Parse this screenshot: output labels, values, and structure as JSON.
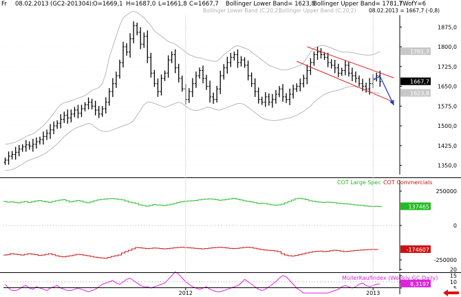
{
  "header": {
    "prefix": "Fr",
    "date": "08.02.2013",
    "symbol": "(GC2-201304):",
    "open": "O=1669,1",
    "high": "H=1687,0",
    "low": "L=1661,8",
    "close": "C=1667,7",
    "bb_lower": "Bollinger Lower Band= 1623,8",
    "bb_upper": "Bollinger Upper Band= 1781,7",
    "twof": "TWofY=6"
  },
  "colors": {
    "price": "#000000",
    "bollinger": "#b8b8b8",
    "channel": "#e02020",
    "arrow": "#1a3fd8",
    "cot_large": "#22bb22",
    "cot_commercials": "#cc1111",
    "mueller": "#dd22dd",
    "axis": "#000000",
    "grid": "#bbbbbb"
  },
  "chart_data": [
    {
      "type": "ohlc",
      "subtitle_left": "Bollinger Lower Band (C,20,2)",
      "subtitle_right": "Bollinger Upper Band (C,20,2)",
      "last_readout": "08.02.2013 = 1667,7 (-0,8)",
      "y_ticks": [
        "1875,0",
        "1800,0",
        "1725,0",
        "1650,0",
        "1575,0",
        "1500,0",
        "1425,0",
        "1350,0"
      ],
      "y_tick_values": [
        1875,
        1800,
        1725,
        1650,
        1575,
        1500,
        1425,
        1350
      ],
      "ylim": [
        1315,
        1920
      ],
      "badges": [
        {
          "text": "1781,7",
          "value": 1781.7,
          "fill": "#c8c8c8",
          "color": "#ffffff"
        },
        {
          "text": "1667,7",
          "value": 1667.7,
          "fill": "#000000",
          "color": "#ffffff"
        },
        {
          "text": "1623,8",
          "value": 1623.8,
          "fill": "#c8c8c8",
          "color": "#ffffff"
        }
      ],
      "x_labels": [
        "2012",
        "2013"
      ],
      "x_label_weeks": [
        52,
        106
      ],
      "weeks": 114,
      "close": [
        1370,
        1385,
        1392,
        1400,
        1412,
        1420,
        1428,
        1423,
        1430,
        1440,
        1448,
        1460,
        1472,
        1485,
        1500,
        1510,
        1525,
        1540,
        1530,
        1545,
        1560,
        1548,
        1565,
        1580,
        1590,
        1575,
        1560,
        1545,
        1565,
        1590,
        1630,
        1660,
        1690,
        1740,
        1800,
        1780,
        1830,
        1880,
        1855,
        1810,
        1840,
        1760,
        1700,
        1660,
        1630,
        1680,
        1700,
        1750,
        1770,
        1720,
        1680,
        1640,
        1600,
        1630,
        1660,
        1690,
        1710,
        1680,
        1650,
        1610,
        1600,
        1640,
        1690,
        1720,
        1740,
        1760,
        1770,
        1740,
        1750,
        1730,
        1690,
        1660,
        1630,
        1600,
        1590,
        1610,
        1590,
        1600,
        1620,
        1640,
        1610,
        1600,
        1620,
        1640,
        1650,
        1660,
        1680,
        1710,
        1740,
        1770,
        1780,
        1770,
        1760,
        1740,
        1730,
        1720,
        1700,
        1710,
        1730,
        1700,
        1690,
        1680,
        1660,
        1650,
        1640,
        1660,
        1680,
        1690,
        1667.7
      ],
      "bb_upper": [
        1430,
        1432,
        1435,
        1438,
        1445,
        1452,
        1460,
        1465,
        1470,
        1478,
        1490,
        1500,
        1515,
        1530,
        1548,
        1565,
        1580,
        1588,
        1590,
        1595,
        1600,
        1605,
        1610,
        1615,
        1625,
        1635,
        1640,
        1645,
        1660,
        1700,
        1760,
        1800,
        1840,
        1880,
        1910,
        1920,
        1930,
        1935,
        1930,
        1920,
        1910,
        1895,
        1880,
        1860,
        1850,
        1840,
        1830,
        1820,
        1815,
        1810,
        1800,
        1790,
        1780,
        1770,
        1765,
        1760,
        1758,
        1755,
        1750,
        1748,
        1745,
        1745,
        1755,
        1770,
        1780,
        1790,
        1800,
        1805,
        1800,
        1795,
        1790,
        1780,
        1770,
        1760,
        1750,
        1740,
        1730,
        1725,
        1720,
        1715,
        1712,
        1712,
        1715,
        1720,
        1725,
        1730,
        1740,
        1760,
        1780,
        1795,
        1800,
        1805,
        1805,
        1800,
        1795,
        1790,
        1785,
        1780,
        1780,
        1780,
        1778,
        1775,
        1772,
        1770,
        1768,
        1768,
        1770,
        1775,
        1781.7
      ],
      "bb_lower": [
        1330,
        1332,
        1335,
        1340,
        1348,
        1355,
        1365,
        1370,
        1375,
        1380,
        1385,
        1392,
        1400,
        1410,
        1420,
        1432,
        1445,
        1460,
        1470,
        1480,
        1490,
        1495,
        1500,
        1505,
        1510,
        1505,
        1495,
        1485,
        1480,
        1478,
        1480,
        1485,
        1490,
        1495,
        1500,
        1505,
        1510,
        1520,
        1540,
        1560,
        1580,
        1590,
        1590,
        1585,
        1580,
        1575,
        1570,
        1575,
        1580,
        1585,
        1590,
        1585,
        1575,
        1565,
        1560,
        1558,
        1560,
        1565,
        1570,
        1570,
        1565,
        1560,
        1560,
        1565,
        1570,
        1575,
        1580,
        1585,
        1585,
        1580,
        1570,
        1560,
        1550,
        1540,
        1530,
        1525,
        1522,
        1520,
        1520,
        1522,
        1525,
        1528,
        1530,
        1535,
        1540,
        1548,
        1555,
        1565,
        1575,
        1590,
        1600,
        1610,
        1620,
        1625,
        1630,
        1632,
        1635,
        1640,
        1645,
        1648,
        1650,
        1648,
        1645,
        1640,
        1635,
        1630,
        1628,
        1625,
        1623.8
      ],
      "channel": {
        "upper": {
          "w0": 87,
          "v0": 1800,
          "w1": 112,
          "v1": 1682
        },
        "lower": {
          "w0": 84,
          "v0": 1745,
          "w1": 112,
          "v1": 1590
        }
      },
      "arrow": {
        "w0": 108,
        "v0": 1688,
        "w1": 112,
        "v1": 1578
      }
    },
    {
      "type": "line",
      "legend": [
        "COT Large Spec",
        "COT Commercials"
      ],
      "y_ticks": [
        "250000",
        "0",
        "-250000"
      ],
      "y_tick_values": [
        250000,
        0,
        -250000
      ],
      "ylim": [
        -330000,
        330000
      ],
      "badges": [
        {
          "text": "137465",
          "value": 137465,
          "fill": "#22bb22",
          "color": "#ffffff"
        },
        {
          "text": "-174607",
          "value": -174607,
          "fill": "#cc1111",
          "color": "#ffffff"
        }
      ],
      "series": [
        {
          "name": "COT Large Spec",
          "values": [
            175000,
            170000,
            172000,
            168000,
            165000,
            170000,
            175000,
            168000,
            172000,
            178000,
            182000,
            176000,
            172000,
            168000,
            175000,
            180000,
            185000,
            188000,
            180000,
            172000,
            176000,
            182000,
            178000,
            170000,
            165000,
            172000,
            180000,
            186000,
            190000,
            192000,
            195000,
            196000,
            194000,
            190000,
            186000,
            178000,
            170000,
            165000,
            160000,
            150000,
            145000,
            140000,
            146000,
            152000,
            150000,
            148000,
            145000,
            150000,
            155000,
            160000,
            168000,
            172000,
            176000,
            178000,
            180000,
            182000,
            186000,
            190000,
            192000,
            194000,
            192000,
            188000,
            184000,
            186000,
            190000,
            194000,
            198000,
            192000,
            186000,
            180000,
            176000,
            172000,
            166000,
            160000,
            162000,
            160000,
            155000,
            150000,
            148000,
            150000,
            155000,
            165000,
            175000,
            185000,
            195000,
            198000,
            194000,
            188000,
            180000,
            176000,
            172000,
            170000,
            168000,
            170000,
            168000,
            166000,
            162000,
            160000,
            158000,
            156000,
            154000,
            150000,
            148000,
            146000,
            142000,
            140000,
            138000,
            140000,
            137465
          ]
        },
        {
          "name": "COT Commercials",
          "values": [
            -215000,
            -212000,
            -205000,
            -208000,
            -212000,
            -215000,
            -210000,
            -205000,
            -208000,
            -212000,
            -218000,
            -215000,
            -210000,
            -205000,
            -212000,
            -220000,
            -225000,
            -228000,
            -224000,
            -220000,
            -215000,
            -210000,
            -212000,
            -216000,
            -220000,
            -225000,
            -230000,
            -234000,
            -236000,
            -238000,
            -232000,
            -225000,
            -220000,
            -215000,
            -200000,
            -190000,
            -180000,
            -170000,
            -160000,
            -162000,
            -165000,
            -168000,
            -166000,
            -164000,
            -165000,
            -168000,
            -170000,
            -168000,
            -165000,
            -162000,
            -160000,
            -158000,
            -160000,
            -162000,
            -164000,
            -166000,
            -168000,
            -170000,
            -168000,
            -165000,
            -162000,
            -160000,
            -158000,
            -160000,
            -163000,
            -166000,
            -168000,
            -166000,
            -163000,
            -160000,
            -158000,
            -160000,
            -165000,
            -170000,
            -175000,
            -178000,
            -180000,
            -182000,
            -185000,
            -190000,
            -205000,
            -215000,
            -220000,
            -222000,
            -218000,
            -212000,
            -206000,
            -200000,
            -195000,
            -190000,
            -188000,
            -186000,
            -190000,
            -188000,
            -184000,
            -180000,
            -182000,
            -186000,
            -190000,
            -188000,
            -185000,
            -182000,
            -180000,
            -178000,
            -176000,
            -175000,
            -174000,
            -174607
          ]
        }
      ]
    },
    {
      "type": "line",
      "legend": [
        "MüllerKaufIndex (Weekly,GC,Daily)"
      ],
      "y_ticks": [
        "20",
        "15",
        "10",
        "5"
      ],
      "y_tick_values": [
        20,
        15,
        10,
        5
      ],
      "ylim": [
        0,
        21
      ],
      "reference_line": 10,
      "badges": [
        {
          "text": "8,3197",
          "value": 8.3197,
          "fill": "#dd22dd",
          "color": "#ffffff"
        }
      ],
      "series": [
        {
          "name": "MüllerKaufIndex (Weekly,GC,Daily)",
          "values": [
            8,
            5,
            3,
            3,
            4,
            6,
            7,
            5,
            4,
            6,
            5,
            4,
            3,
            5,
            6,
            7,
            5,
            4,
            3,
            3,
            4,
            5,
            4,
            3,
            2,
            3,
            4,
            6,
            8,
            9,
            10,
            11,
            9,
            8,
            10,
            12,
            13,
            11,
            9,
            7,
            6,
            6,
            5,
            6,
            7,
            8,
            9,
            12,
            15,
            18,
            16,
            13,
            10,
            8,
            6,
            5,
            4,
            5,
            6,
            4,
            3,
            2,
            2,
            3,
            4,
            5,
            6,
            7,
            9,
            12,
            10,
            8,
            6,
            4,
            3,
            4,
            6,
            8,
            10,
            13,
            15,
            14,
            11,
            8,
            5,
            3,
            1,
            1,
            1,
            1,
            1,
            1,
            1,
            1,
            2,
            3,
            4,
            6,
            7,
            6,
            5,
            6,
            8,
            9,
            7,
            6,
            7,
            8,
            8.3197
          ]
        }
      ]
    }
  ]
}
